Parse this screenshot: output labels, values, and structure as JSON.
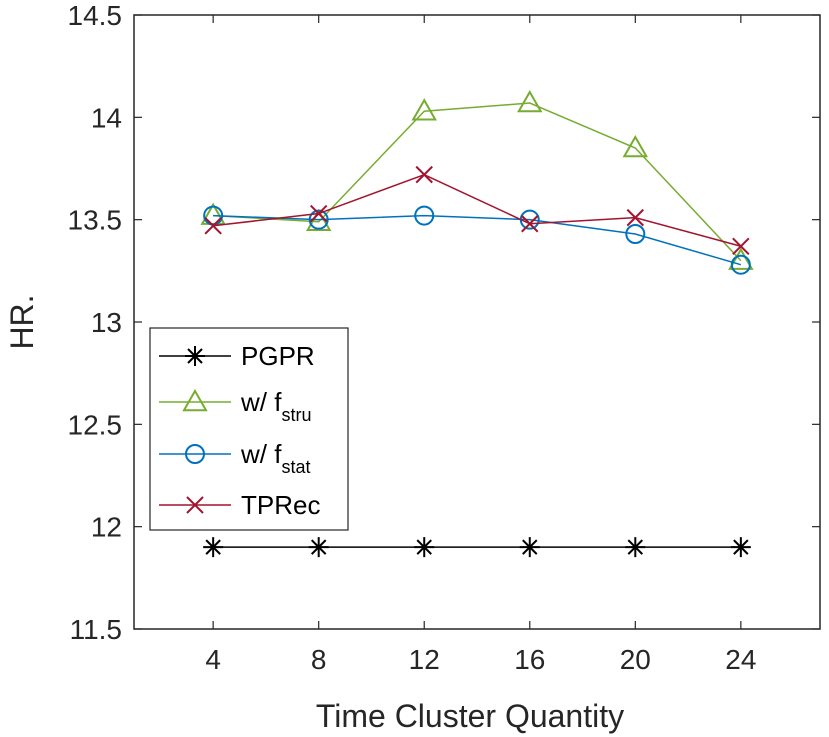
{
  "chart_data": {
    "type": "line",
    "title": "",
    "xlabel": "Time Cluster Quantity",
    "ylabel": "HR.",
    "x": [
      4,
      8,
      12,
      16,
      20,
      24
    ],
    "xticks": [
      "4",
      "8",
      "12",
      "16",
      "20",
      "24"
    ],
    "xlim": [
      1,
      27
    ],
    "ylim": [
      11.5,
      14.5
    ],
    "yticks": [
      "11.5",
      "12",
      "12.5",
      "13",
      "13.5",
      "14",
      "14.5"
    ],
    "grid": false,
    "legend_position": "left-middle",
    "series": [
      {
        "name": "PGPR",
        "color": "#000000",
        "marker": "star",
        "values": [
          11.9,
          11.9,
          11.9,
          11.9,
          11.9,
          11.9
        ]
      },
      {
        "name": "w/ f_stru",
        "label_main": "w/ f",
        "label_sub": "stru",
        "color": "#77AC30",
        "marker": "triangle",
        "values": [
          13.52,
          13.49,
          14.03,
          14.07,
          13.85,
          13.3
        ]
      },
      {
        "name": "w/ f_stat",
        "label_main": "w/ f",
        "label_sub": "stat",
        "color": "#0072BD",
        "marker": "circle",
        "values": [
          13.52,
          13.5,
          13.52,
          13.5,
          13.43,
          13.28
        ]
      },
      {
        "name": "TPRec",
        "color": "#A2142F",
        "marker": "x",
        "values": [
          13.47,
          13.53,
          13.72,
          13.48,
          13.51,
          13.37
        ]
      }
    ]
  }
}
